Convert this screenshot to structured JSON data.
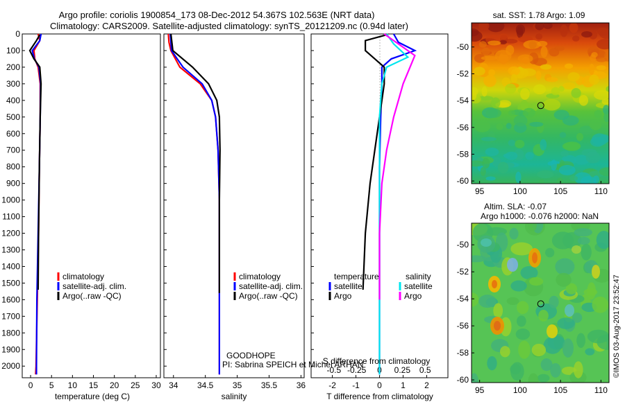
{
  "header": {
    "line1": "Argo profile: coriolis 1900854_173 08-Dec-2012 54.367S 102.563E (NRT data)",
    "line2": "Climatology: CARS2009. Satellite-adjusted climatology: synTS_20121209.nc (0.94d later)"
  },
  "colors": {
    "climatology": "#ff0000",
    "satellite": "#0000ff",
    "argo": "#000000",
    "sal_satellite": "#00e5ee",
    "sal_argo": "#ff00ff"
  },
  "chart_data": [
    {
      "type": "line",
      "xlabel": "temperature (deg C)",
      "ylabel": "",
      "xlim": [
        -2,
        31
      ],
      "ylim": [
        2070,
        0
      ],
      "xticks": [
        0,
        5,
        10,
        15,
        20,
        25,
        30
      ],
      "yticks": [
        0,
        100,
        200,
        300,
        400,
        500,
        600,
        700,
        800,
        900,
        1000,
        1100,
        1200,
        1300,
        1400,
        1500,
        1600,
        1700,
        1800,
        1900,
        2000
      ],
      "legend": [
        "climatology",
        "satellite-adj. clim.",
        "Argo(..raw -QC)"
      ],
      "series": [
        {
          "name": "climatology",
          "color": "#ff0000",
          "points": [
            [
              1.8,
              0
            ],
            [
              2.2,
              40
            ],
            [
              0.8,
              100
            ],
            [
              1.0,
              150
            ],
            [
              1.8,
              200
            ],
            [
              2.3,
              300
            ],
            [
              2.3,
              500
            ],
            [
              2.1,
              800
            ],
            [
              1.9,
              1200
            ],
            [
              1.6,
              1600
            ],
            [
              1.3,
              2000
            ],
            [
              1.2,
              2050
            ]
          ]
        },
        {
          "name": "satellite-adj. clim.",
          "color": "#0000ff",
          "points": [
            [
              2.5,
              0
            ],
            [
              2.2,
              40
            ],
            [
              0.4,
              100
            ],
            [
              0.9,
              150
            ],
            [
              2.0,
              200
            ],
            [
              2.4,
              300
            ],
            [
              2.3,
              500
            ],
            [
              2.1,
              800
            ],
            [
              1.8,
              1200
            ],
            [
              1.5,
              1600
            ],
            [
              1.4,
              2000
            ],
            [
              1.4,
              2050
            ]
          ]
        },
        {
          "name": "Argo(..raw -QC)",
          "color": "#000000",
          "points": [
            [
              2.2,
              5
            ],
            [
              1.4,
              40
            ],
            [
              -0.2,
              100
            ],
            [
              0.8,
              150
            ],
            [
              2.2,
              200
            ],
            [
              2.5,
              300
            ],
            [
              2.3,
              500
            ],
            [
              2.1,
              800
            ],
            [
              1.9,
              1200
            ],
            [
              1.8,
              1540
            ]
          ]
        }
      ]
    },
    {
      "type": "line",
      "xlabel": "salinity",
      "ylabel": "",
      "xlim": [
        33.85,
        36.05
      ],
      "ylim": [
        2070,
        0
      ],
      "xticks": [
        34,
        34.5,
        35,
        35.5,
        36
      ],
      "legend": [
        "climatology",
        "satellite-adj. clim.",
        "Argo(..raw -QC)"
      ],
      "annotations": [
        "GOODHOPE",
        "PI: Sabrina SPEICH et Michel ARHAN"
      ],
      "series": [
        {
          "name": "climatology",
          "color": "#ff0000",
          "points": [
            [
              33.92,
              0
            ],
            [
              33.93,
              50
            ],
            [
              33.96,
              100
            ],
            [
              34.1,
              200
            ],
            [
              34.42,
              300
            ],
            [
              34.6,
              400
            ],
            [
              34.66,
              500
            ],
            [
              34.7,
              700
            ],
            [
              34.72,
              1000
            ],
            [
              34.72,
              1500
            ],
            [
              34.72,
              2050
            ]
          ]
        },
        {
          "name": "satellite-adj. clim.",
          "color": "#0000ff",
          "points": [
            [
              33.95,
              0
            ],
            [
              33.97,
              100
            ],
            [
              34.15,
              200
            ],
            [
              34.45,
              300
            ],
            [
              34.6,
              400
            ],
            [
              34.66,
              500
            ],
            [
              34.7,
              700
            ],
            [
              34.72,
              1000
            ],
            [
              34.72,
              1500
            ],
            [
              34.72,
              2050
            ]
          ]
        },
        {
          "name": "Argo(..raw -QC)",
          "color": "#000000",
          "points": [
            [
              33.96,
              0
            ],
            [
              33.99,
              100
            ],
            [
              34.3,
              200
            ],
            [
              34.55,
              300
            ],
            [
              34.68,
              400
            ],
            [
              34.72,
              500
            ],
            [
              34.73,
              700
            ],
            [
              34.72,
              1000
            ],
            [
              34.72,
              1560
            ]
          ]
        }
      ]
    },
    {
      "type": "line",
      "xlabel": "T difference from climatology",
      "xlabel_top": "S difference from climatology",
      "ylabel": "",
      "xlim": [
        -2.9,
        2.9
      ],
      "ylim": [
        2070,
        0
      ],
      "xticks": [
        -2,
        -1,
        0,
        1,
        2
      ],
      "xticks_top": [
        -0.5,
        -0.25,
        0,
        0.25,
        0.5
      ],
      "legend_t_title": "temperature",
      "legend_s_title": "salinity",
      "legend": [
        "satellite",
        "Argo",
        "satellite",
        "Argo"
      ],
      "series": [
        {
          "name": "temperature satellite",
          "color": "#0000ff",
          "points": [
            [
              0.6,
              0
            ],
            [
              0.8,
              50
            ],
            [
              1.5,
              100
            ],
            [
              0.5,
              150
            ],
            [
              0.1,
              200
            ],
            [
              0.1,
              300
            ],
            [
              0.05,
              500
            ],
            [
              0.0,
              800
            ],
            [
              0.0,
              1200
            ],
            [
              0.0,
              1600
            ],
            [
              0.0,
              2050
            ]
          ]
        },
        {
          "name": "temperature Argo",
          "color": "#000000",
          "points": [
            [
              0.3,
              5
            ],
            [
              -0.6,
              40
            ],
            [
              -0.6,
              100
            ],
            [
              -0.2,
              150
            ],
            [
              0.2,
              200
            ],
            [
              0.2,
              300
            ],
            [
              0.0,
              500
            ],
            [
              -0.2,
              700
            ],
            [
              -0.4,
              900
            ],
            [
              -0.6,
              1200
            ],
            [
              -0.7,
              1540
            ]
          ]
        },
        {
          "name": "salinity satellite",
          "color": "#00e5ee",
          "points": [
            [
              0.3,
              0
            ],
            [
              0.6,
              60
            ],
            [
              1.2,
              140
            ],
            [
              0.3,
              200
            ],
            [
              0.1,
              300
            ],
            [
              0.0,
              500
            ],
            [
              0.0,
              1000
            ],
            [
              0.0,
              1500
            ],
            [
              0.0,
              2050
            ]
          ]
        },
        {
          "name": "salinity Argo",
          "color": "#ff00ff",
          "points": [
            [
              0.2,
              0
            ],
            [
              0.8,
              60
            ],
            [
              1.5,
              130
            ],
            [
              1.0,
              300
            ],
            [
              0.6,
              500
            ],
            [
              0.3,
              700
            ],
            [
              0.1,
              900
            ],
            [
              0.0,
              1200
            ],
            [
              0.0,
              1600
            ]
          ]
        }
      ]
    },
    {
      "type": "heatmap",
      "title": "sat. SST: 1.78 Argo: 1.09",
      "xlim": [
        94,
        111
      ],
      "ylim": [
        -60.2,
        -48.2
      ],
      "xticks": [
        95,
        100,
        105,
        110
      ],
      "yticks": [
        -50,
        -52,
        -54,
        -56,
        -58,
        -60
      ],
      "marker": [
        102.56,
        -54.37
      ]
    },
    {
      "type": "heatmap",
      "title_line1": "Altim. SLA: -0.07",
      "title_line2": "Argo h1000: -0.076 h2000: NaN",
      "xlim": [
        94,
        111
      ],
      "ylim": [
        -60.2,
        -48.4
      ],
      "xticks": [
        95,
        100,
        105,
        110
      ],
      "yticks": [
        -50,
        -52,
        -54,
        -56,
        -58,
        -60
      ],
      "marker": [
        102.56,
        -54.37
      ]
    }
  ],
  "stamp": "©IMOS 03-Aug-2017 23:52:47"
}
